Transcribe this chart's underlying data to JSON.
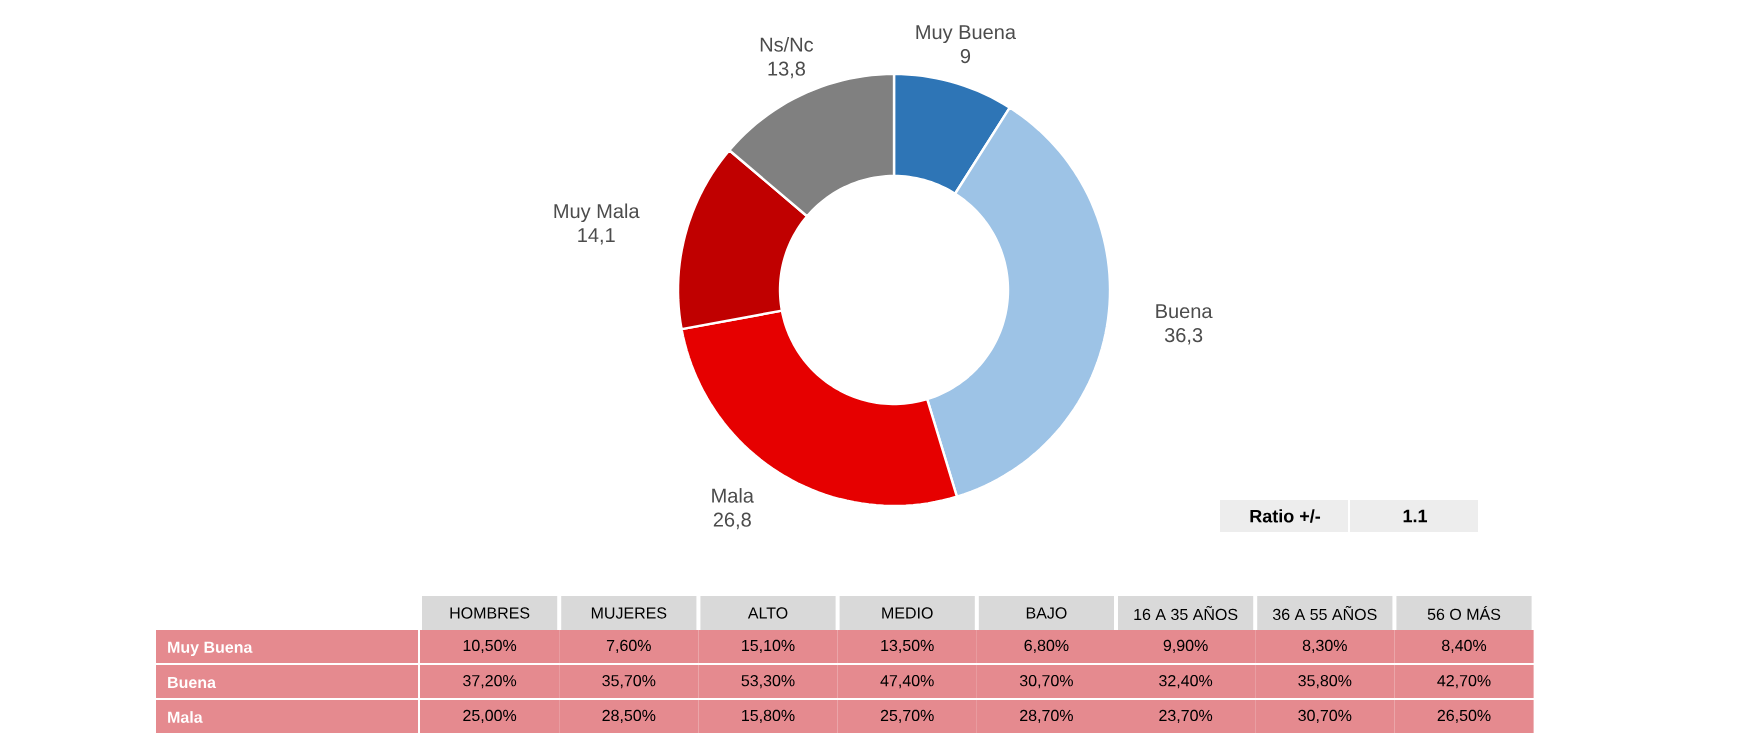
{
  "chart_data": [
    {
      "type": "donut",
      "categories": [
        "Muy Buena",
        "Buena",
        "Mala",
        "Muy Mala",
        "Ns/Nc"
      ],
      "values": [
        9,
        36.3,
        26.8,
        14.1,
        13.8
      ],
      "value_labels": [
        "9",
        "36,3",
        "26,8",
        "14,1",
        "13,8"
      ],
      "colors": [
        "#2e75b6",
        "#9dc3e6",
        "#e60000",
        "#c00000",
        "#808080"
      ],
      "annotations": [
        "Ratio +/-",
        "1.1"
      ]
    },
    {
      "type": "other",
      "categories": [
        "HOMBRES",
        "MUJERES",
        "ALTO",
        "MEDIO",
        "BAJO",
        "16 A 35 AÑOS",
        "36 A 55 AÑOS",
        "56 O MÁS"
      ],
      "y_categories": [
        "Muy Buena",
        "Buena",
        "Mala"
      ],
      "cell_labels": [
        [
          "10,50%",
          "7,60%",
          "15,10%",
          "13,50%",
          "6,80%",
          "9,90%",
          "8,30%",
          "8,40%"
        ],
        [
          "37,20%",
          "35,70%",
          "53,30%",
          "47,40%",
          "30,70%",
          "32,40%",
          "35,80%",
          "42,70%"
        ],
        [
          "25,00%",
          "28,50%",
          "15,80%",
          "25,70%",
          "28,70%",
          "23,70%",
          "30,70%",
          "26,50%"
        ]
      ]
    }
  ]
}
